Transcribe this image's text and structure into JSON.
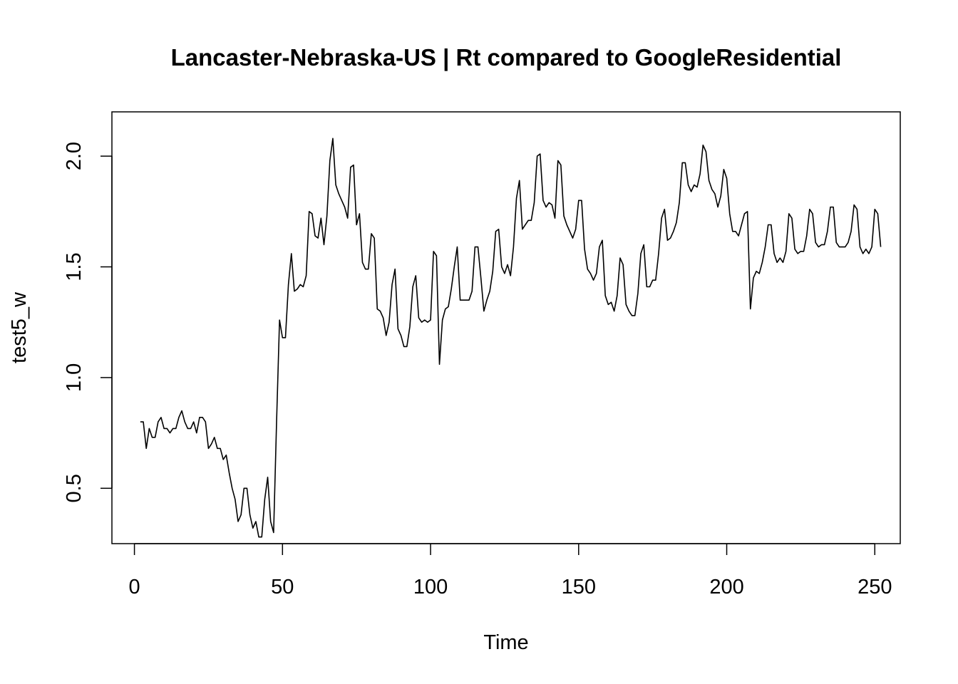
{
  "chart_data": {
    "type": "line",
    "title": "Lancaster-Nebraska-US | Rt compared to GoogleResidential",
    "xlabel": "Time",
    "ylabel": "test5_w",
    "xlim": [
      -7.6,
      258.6
    ],
    "ylim": [
      0.25,
      2.2
    ],
    "xticks": [
      0,
      50,
      100,
      150,
      200,
      250
    ],
    "yticks": [
      0.5,
      1.0,
      1.5,
      2.0
    ],
    "xtick_labels": [
      "0",
      "50",
      "100",
      "150",
      "200",
      "250"
    ],
    "ytick_labels": [
      "0.5",
      "1.0",
      "1.5",
      "2.0"
    ],
    "grid": false,
    "line_color": "#000000",
    "series": [
      {
        "x_start": 2,
        "x_step": 1,
        "values": [
          0.8,
          0.8,
          0.68,
          0.77,
          0.73,
          0.73,
          0.8,
          0.82,
          0.77,
          0.77,
          0.75,
          0.77,
          0.77,
          0.82,
          0.85,
          0.8,
          0.77,
          0.77,
          0.8,
          0.75,
          0.82,
          0.82,
          0.8,
          0.68,
          0.7,
          0.73,
          0.68,
          0.68,
          0.63,
          0.65,
          0.57,
          0.5,
          0.45,
          0.35,
          0.38,
          0.5,
          0.5,
          0.38,
          0.32,
          0.35,
          0.28,
          0.28,
          0.45,
          0.55,
          0.35,
          0.3,
          0.8,
          1.26,
          1.18,
          1.18,
          1.42,
          1.56,
          1.39,
          1.4,
          1.42,
          1.41,
          1.46,
          1.75,
          1.74,
          1.64,
          1.63,
          1.72,
          1.6,
          1.73,
          1.98,
          2.08,
          1.87,
          1.83,
          1.8,
          1.77,
          1.72,
          1.95,
          1.96,
          1.69,
          1.74,
          1.52,
          1.49,
          1.49,
          1.65,
          1.63,
          1.31,
          1.3,
          1.27,
          1.19,
          1.25,
          1.42,
          1.49,
          1.22,
          1.19,
          1.14,
          1.14,
          1.23,
          1.41,
          1.46,
          1.27,
          1.25,
          1.26,
          1.25,
          1.26,
          1.57,
          1.55,
          1.06,
          1.26,
          1.31,
          1.32,
          1.4,
          1.5,
          1.59,
          1.35,
          1.35,
          1.35,
          1.35,
          1.39,
          1.59,
          1.59,
          1.45,
          1.3,
          1.35,
          1.39,
          1.48,
          1.66,
          1.67,
          1.5,
          1.47,
          1.51,
          1.46,
          1.59,
          1.81,
          1.89,
          1.67,
          1.69,
          1.71,
          1.71,
          1.79,
          2.0,
          2.01,
          1.8,
          1.77,
          1.79,
          1.78,
          1.72,
          1.98,
          1.96,
          1.73,
          1.69,
          1.66,
          1.63,
          1.67,
          1.8,
          1.8,
          1.58,
          1.49,
          1.47,
          1.44,
          1.47,
          1.59,
          1.62,
          1.37,
          1.33,
          1.34,
          1.3,
          1.37,
          1.54,
          1.51,
          1.33,
          1.3,
          1.28,
          1.28,
          1.38,
          1.56,
          1.6,
          1.41,
          1.41,
          1.44,
          1.44,
          1.56,
          1.72,
          1.76,
          1.62,
          1.63,
          1.66,
          1.7,
          1.79,
          1.97,
          1.97,
          1.87,
          1.84,
          1.87,
          1.86,
          1.92,
          2.05,
          2.02,
          1.89,
          1.85,
          1.83,
          1.77,
          1.82,
          1.94,
          1.9,
          1.74,
          1.66,
          1.66,
          1.64,
          1.69,
          1.74,
          1.75,
          1.31,
          1.45,
          1.48,
          1.47,
          1.52,
          1.59,
          1.69,
          1.69,
          1.56,
          1.52,
          1.54,
          1.52,
          1.57,
          1.74,
          1.72,
          1.58,
          1.56,
          1.57,
          1.57,
          1.64,
          1.76,
          1.74,
          1.61,
          1.59,
          1.6,
          1.6,
          1.66,
          1.77,
          1.77,
          1.61,
          1.59,
          1.59,
          1.59,
          1.61,
          1.66,
          1.78,
          1.76,
          1.59,
          1.56,
          1.58,
          1.56,
          1.59,
          1.76,
          1.74,
          1.59
        ]
      }
    ]
  }
}
